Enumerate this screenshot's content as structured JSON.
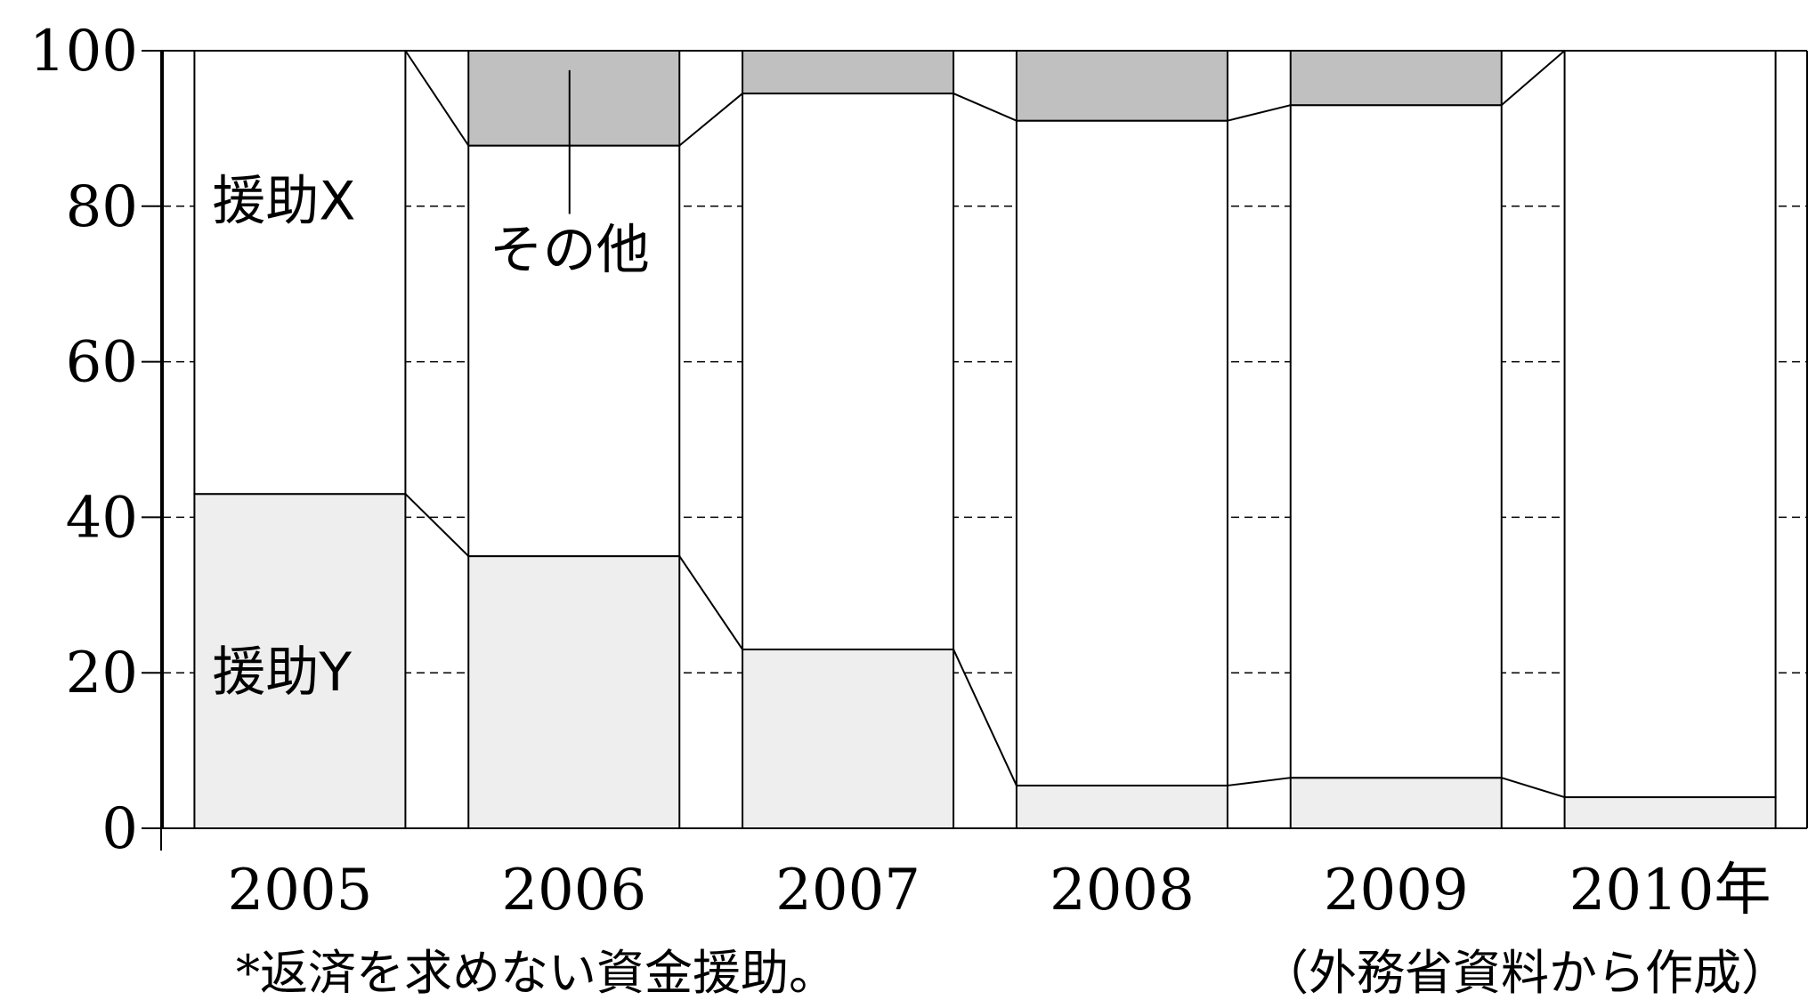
{
  "chart_data": {
    "type": "bar",
    "stacked": true,
    "categories": [
      "2005",
      "2006",
      "2007",
      "2008",
      "2009",
      "2010年"
    ],
    "series": [
      {
        "name": "援助Y",
        "values": [
          43,
          35,
          23,
          5.5,
          6.5,
          4
        ],
        "color": "#eeeeee"
      },
      {
        "name": "援助X",
        "values": [
          57,
          52.8,
          71.5,
          85.5,
          86.5,
          96
        ],
        "color": "#ffffff"
      },
      {
        "name": "その他",
        "values": [
          0,
          12.2,
          5.5,
          9,
          7,
          0
        ],
        "color": "#c0c0c0"
      }
    ],
    "ylim": [
      0,
      100
    ],
    "yticks": [
      "0",
      "20",
      "40",
      "60",
      "80",
      "100"
    ],
    "grid": true,
    "grid_style": "dashed",
    "connecting_lines": true,
    "footnote": "*返済を求めない資金援助。",
    "source": "（外務省資料から作成）"
  }
}
